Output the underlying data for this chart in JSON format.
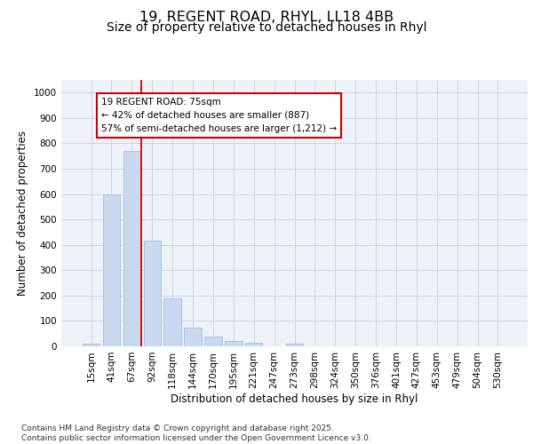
{
  "title_line1": "19, REGENT ROAD, RHYL, LL18 4BB",
  "title_line2": "Size of property relative to detached houses in Rhyl",
  "xlabel": "Distribution of detached houses by size in Rhyl",
  "ylabel": "Number of detached properties",
  "categories": [
    "15sqm",
    "41sqm",
    "67sqm",
    "92sqm",
    "118sqm",
    "144sqm",
    "170sqm",
    "195sqm",
    "221sqm",
    "247sqm",
    "273sqm",
    "298sqm",
    "324sqm",
    "350sqm",
    "376sqm",
    "401sqm",
    "427sqm",
    "453sqm",
    "479sqm",
    "504sqm",
    "530sqm"
  ],
  "values": [
    12,
    600,
    770,
    415,
    190,
    75,
    38,
    20,
    13,
    0,
    12,
    0,
    0,
    0,
    0,
    0,
    0,
    0,
    0,
    0,
    0
  ],
  "bar_color": "#c8d9ef",
  "bar_edge_color": "#a8bcd8",
  "grid_color": "#ccd5e3",
  "background_color": "#eef2f8",
  "vline_color": "#cc0000",
  "vline_pos": 2.48,
  "annotation_text": "19 REGENT ROAD: 75sqm\n← 42% of detached houses are smaller (887)\n57% of semi-detached houses are larger (1,212) →",
  "annotation_box_color": "#ffffff",
  "annotation_box_edge": "#cc0000",
  "ylim": [
    0,
    1050
  ],
  "yticks": [
    0,
    100,
    200,
    300,
    400,
    500,
    600,
    700,
    800,
    900,
    1000
  ],
  "footer_text": "Contains HM Land Registry data © Crown copyright and database right 2025.\nContains public sector information licensed under the Open Government Licence v3.0.",
  "title_fontsize": 11.5,
  "subtitle_fontsize": 10,
  "axis_label_fontsize": 8.5,
  "tick_fontsize": 7.5,
  "annotation_fontsize": 7.5,
  "footer_fontsize": 6.5
}
